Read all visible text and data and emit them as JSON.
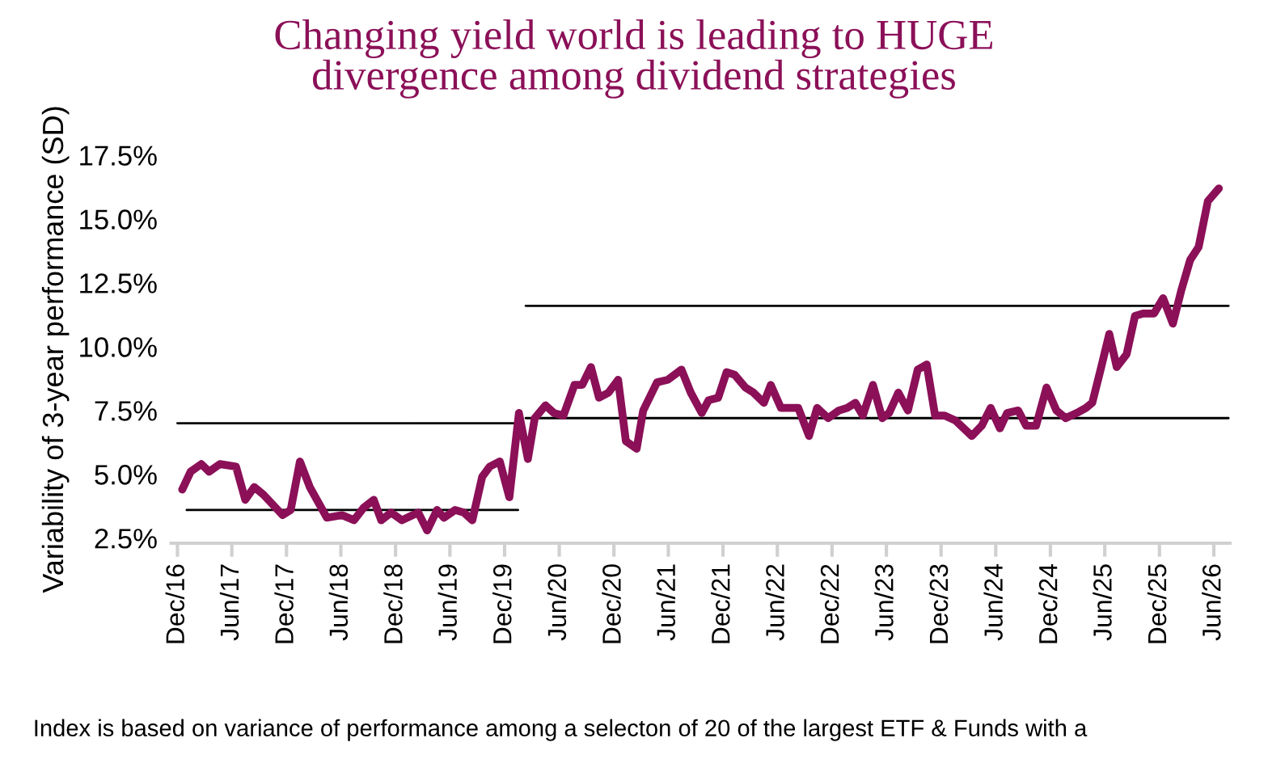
{
  "chart_data": {
    "type": "line",
    "title": "Changing yield world is leading to HUGE\ndivergence among dividend strategies",
    "ylabel": "Variability of 3-year performance (SD)",
    "annotations": [
      "Index is based on variance of performance among a selecton of 20 of the largest ETF & Funds with a"
    ],
    "xlim": [
      "2016-11-10",
      "2026-07-25"
    ],
    "ylim": [
      2.3,
      17.5
    ],
    "yticks": [
      {
        "value": 2.5,
        "label": "2.5%"
      },
      {
        "value": 5.0,
        "label": "5.0%"
      },
      {
        "value": 7.5,
        "label": "7.5%"
      },
      {
        "value": 10.0,
        "label": "10.0%"
      },
      {
        "value": 12.5,
        "label": "12.5%"
      },
      {
        "value": 15.0,
        "label": "15.0%"
      },
      {
        "value": 17.5,
        "label": "17.5%"
      }
    ],
    "xticks": [
      {
        "value": "2016-12-01",
        "label": "Dec/16"
      },
      {
        "value": "2017-06-01",
        "label": "Jun/17"
      },
      {
        "value": "2017-12-01",
        "label": "Dec/17"
      },
      {
        "value": "2018-06-01",
        "label": "Jun/18"
      },
      {
        "value": "2018-12-01",
        "label": "Dec/18"
      },
      {
        "value": "2019-06-01",
        "label": "Jun/19"
      },
      {
        "value": "2019-12-01",
        "label": "Dec/19"
      },
      {
        "value": "2020-06-01",
        "label": "Jun/20"
      },
      {
        "value": "2020-12-01",
        "label": "Dec/20"
      },
      {
        "value": "2021-06-01",
        "label": "Jun/21"
      },
      {
        "value": "2021-12-01",
        "label": "Dec/21"
      },
      {
        "value": "2022-06-01",
        "label": "Jun/22"
      },
      {
        "value": "2022-12-01",
        "label": "Dec/22"
      },
      {
        "value": "2023-06-01",
        "label": "Jun/23"
      },
      {
        "value": "2023-12-01",
        "label": "Dec/23"
      },
      {
        "value": "2024-06-01",
        "label": "Jun/24"
      },
      {
        "value": "2024-12-01",
        "label": "Dec/24"
      },
      {
        "value": "2025-06-01",
        "label": "Jun/25"
      },
      {
        "value": "2025-12-01",
        "label": "Dec/25"
      },
      {
        "value": "2026-06-01",
        "label": "Jun/26"
      }
    ],
    "grid": false,
    "legend": false,
    "series": [
      {
        "color": "#8b1058",
        "x": [
          "2016-12-17",
          "2017-01-14",
          "2017-02-19",
          "2017-03-17",
          "2017-04-22",
          "2017-06-15",
          "2017-07-16",
          "2017-08-15",
          "2017-09-15",
          "2017-11-18",
          "2017-12-15",
          "2018-01-15",
          "2018-02-17",
          "2018-04-15",
          "2018-06-05",
          "2018-07-15",
          "2018-08-17",
          "2018-09-19",
          "2018-10-14",
          "2018-11-16",
          "2018-12-22",
          "2019-02-15",
          "2019-03-17",
          "2019-04-19",
          "2019-05-12",
          "2019-06-18",
          "2019-07-18",
          "2019-08-15",
          "2019-09-17",
          "2019-10-12",
          "2019-11-15",
          "2019-12-17",
          "2020-01-18",
          "2020-02-17",
          "2020-03-11",
          "2020-04-16",
          "2020-05-14",
          "2020-06-15",
          "2020-07-22",
          "2020-08-17",
          "2020-09-15",
          "2020-10-12",
          "2020-11-13",
          "2020-12-15",
          "2021-01-10",
          "2021-02-15",
          "2021-03-09",
          "2021-04-24",
          "2021-05-30",
          "2021-07-15",
          "2021-08-15",
          "2021-09-21",
          "2021-10-14",
          "2021-11-15",
          "2021-12-13",
          "2022-01-09",
          "2022-02-14",
          "2022-03-13",
          "2022-04-17",
          "2022-05-10",
          "2022-06-13",
          "2022-08-10",
          "2022-09-15",
          "2022-10-12",
          "2022-11-18",
          "2022-12-24",
          "2023-01-21",
          "2023-02-17",
          "2023-03-14",
          "2023-04-17",
          "2023-05-18",
          "2023-06-10",
          "2023-07-11",
          "2023-08-12",
          "2023-09-14",
          "2023-10-14",
          "2023-11-11",
          "2023-12-13",
          "2024-01-19",
          "2024-03-13",
          "2024-04-15",
          "2024-05-15",
          "2024-06-15",
          "2024-07-09",
          "2024-08-15",
          "2024-09-11",
          "2024-10-14",
          "2024-11-18",
          "2024-12-21",
          "2025-01-21",
          "2025-02-27",
          "2025-03-30",
          "2025-04-20",
          "2025-05-18",
          "2025-06-16",
          "2025-07-11",
          "2025-08-13",
          "2025-09-10",
          "2025-10-07",
          "2025-11-13",
          "2025-12-13",
          "2026-01-15",
          "2026-02-12",
          "2026-03-14",
          "2026-04-11",
          "2026-05-12",
          "2026-06-18"
        ],
        "values": [
          4.4,
          5.1,
          5.4,
          5.1,
          5.4,
          5.3,
          4.0,
          4.5,
          4.2,
          3.4,
          3.6,
          5.5,
          4.5,
          3.3,
          3.4,
          3.2,
          3.7,
          4.0,
          3.2,
          3.5,
          3.2,
          3.5,
          2.8,
          3.6,
          3.3,
          3.6,
          3.5,
          3.2,
          4.9,
          5.3,
          5.5,
          4.1,
          7.4,
          5.6,
          7.2,
          7.7,
          7.4,
          7.3,
          8.5,
          8.5,
          9.2,
          8.0,
          8.2,
          8.7,
          6.3,
          6.0,
          7.5,
          8.6,
          8.7,
          9.1,
          8.2,
          7.4,
          7.9,
          8.0,
          9.0,
          8.9,
          8.4,
          8.2,
          7.8,
          8.5,
          7.6,
          7.6,
          6.5,
          7.6,
          7.2,
          7.5,
          7.6,
          7.8,
          7.3,
          8.5,
          7.2,
          7.4,
          8.2,
          7.5,
          9.1,
          9.3,
          7.3,
          7.3,
          7.1,
          6.5,
          6.9,
          7.6,
          6.8,
          7.4,
          7.5,
          6.9,
          6.9,
          8.4,
          7.5,
          7.2,
          7.4,
          7.6,
          7.8,
          9.1,
          10.5,
          9.2,
          9.7,
          11.2,
          11.3,
          11.3,
          11.9,
          10.9,
          12.2,
          13.4,
          13.9,
          15.7,
          16.2
        ]
      },
      {
        "color": "#000000",
        "x": [
          "2017-01-01",
          "2020-01-15"
        ],
        "values": [
          3.6,
          3.6
        ]
      },
      {
        "color": "#000000",
        "x": [
          "2016-12-01",
          "2020-02-01"
        ],
        "values": [
          7.0,
          7.0
        ]
      },
      {
        "color": "#000000",
        "x": [
          "2020-02-10",
          "2026-07-20"
        ],
        "values": [
          11.6,
          11.6
        ]
      },
      {
        "color": "#000000",
        "x": [
          "2020-02-10",
          "2026-07-20"
        ],
        "values": [
          7.2,
          7.2
        ]
      }
    ]
  }
}
